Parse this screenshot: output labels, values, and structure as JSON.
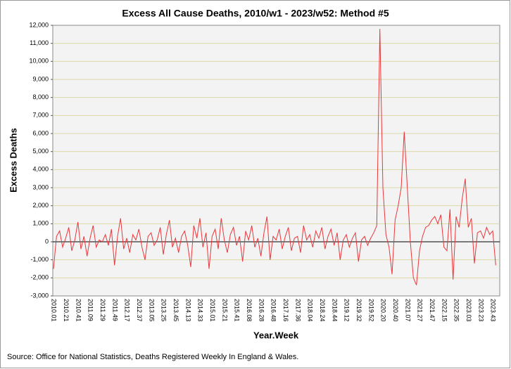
{
  "chart_data": {
    "type": "line",
    "title": "Excess All Cause Deaths, 2010/w1 - 2023/w52: Method #5",
    "x_label": "Year.Week",
    "y_label": "Excess Deaths",
    "source": "Source: Office for National Statistics, Deaths Registered Weekly In England & Wales.",
    "categories": [
      "2010.01",
      null,
      null,
      null,
      "2010.21",
      null,
      null,
      null,
      "2010.41",
      null,
      null,
      null,
      "2011.09",
      null,
      null,
      null,
      "2011.29",
      null,
      null,
      null,
      "2011.49",
      null,
      null,
      null,
      "2012.17",
      null,
      null,
      null,
      "2012.37",
      null,
      null,
      null,
      "2013.05",
      null,
      null,
      null,
      "2013.25",
      null,
      null,
      null,
      "2013.45",
      null,
      null,
      null,
      "2014.13",
      null,
      null,
      null,
      "2014.33",
      null,
      null,
      null,
      "2015.01",
      null,
      null,
      null,
      "2015.21",
      null,
      null,
      null,
      "2015.41",
      null,
      null,
      null,
      "2016.08",
      null,
      null,
      null,
      "2016.28",
      null,
      null,
      null,
      "2016.48",
      null,
      null,
      null,
      "2017.16",
      null,
      null,
      null,
      "2017.36",
      null,
      null,
      null,
      "2018.04",
      null,
      null,
      null,
      "2018.24",
      null,
      null,
      null,
      "2018.44",
      null,
      null,
      null,
      "2019.12",
      null,
      null,
      null,
      "2019.32",
      null,
      null,
      null,
      "2019.52",
      null,
      null,
      null,
      "2020.20",
      null,
      null,
      null,
      "2020.40",
      null,
      null,
      null,
      "2021.07",
      null,
      null,
      null,
      "2021.27",
      null,
      null,
      null,
      "2021.47",
      null,
      null,
      null,
      "2022.15",
      null,
      null,
      null,
      "2022.35",
      null,
      null,
      null,
      "2023.03",
      null,
      null,
      null,
      "2023.23",
      null,
      null,
      null,
      "2023.43",
      null
    ],
    "series": [
      {
        "color": "#e8373b",
        "values": [
          -1500,
          300,
          600,
          -300,
          200,
          800,
          -500,
          100,
          1100,
          -400,
          300,
          -800,
          200,
          900,
          -300,
          100,
          0,
          400,
          -200,
          700,
          -1300,
          300,
          1300,
          -400,
          200,
          -600,
          400,
          100,
          700,
          -300,
          -1000,
          300,
          500,
          -200,
          100,
          800,
          -700,
          400,
          1200,
          -300,
          200,
          -600,
          300,
          600,
          -200,
          -1400,
          900,
          200,
          1300,
          -300,
          500,
          -1500,
          300,
          700,
          -400,
          1300,
          100,
          -600,
          400,
          800,
          -200,
          300,
          -1100,
          600,
          100,
          900,
          -300,
          200,
          -800,
          500,
          1400,
          -1000,
          300,
          100,
          700,
          -400,
          300,
          800,
          -500,
          200,
          300,
          -600,
          900,
          100,
          400,
          -300,
          600,
          200,
          800,
          -400,
          300,
          700,
          -200,
          500,
          -1000,
          100,
          400,
          -300,
          200,
          500,
          -1100,
          100,
          300,
          -200,
          200,
          500,
          900,
          11800,
          3000,
          400,
          -300,
          -1800,
          1200,
          2000,
          3000,
          6100,
          3000,
          0,
          -2000,
          -2400,
          -500,
          300,
          800,
          900,
          1200,
          1400,
          1000,
          1500,
          -300,
          -500,
          1800,
          -2100,
          1400,
          800,
          2400,
          3500,
          800,
          1300,
          -1200,
          500,
          600,
          200,
          800,
          400,
          600,
          -1300
        ]
      }
    ],
    "ylim": [
      -3000,
      12000
    ],
    "yticks": [
      {
        "value": -3000,
        "label": "-3,000"
      },
      {
        "value": -2000,
        "label": "-2,000"
      },
      {
        "value": -1000,
        "label": "-1,000"
      },
      0,
      {
        "value": 1000,
        "label": "1,000"
      },
      {
        "value": 2000,
        "label": "2,000"
      },
      {
        "value": 3000,
        "label": "3,000"
      },
      {
        "value": 4000,
        "label": "4,000"
      },
      {
        "value": 5000,
        "label": "5,000"
      },
      {
        "value": 6000,
        "label": "6,000"
      },
      {
        "value": 7000,
        "label": "7,000"
      },
      {
        "value": 8000,
        "label": "8,000"
      },
      {
        "value": 9000,
        "label": "9,000"
      },
      {
        "value": 10000,
        "label": "10,000"
      },
      {
        "value": 11000,
        "label": "11,000"
      },
      {
        "value": 12000,
        "label": "12,000"
      }
    ],
    "grid": true
  }
}
